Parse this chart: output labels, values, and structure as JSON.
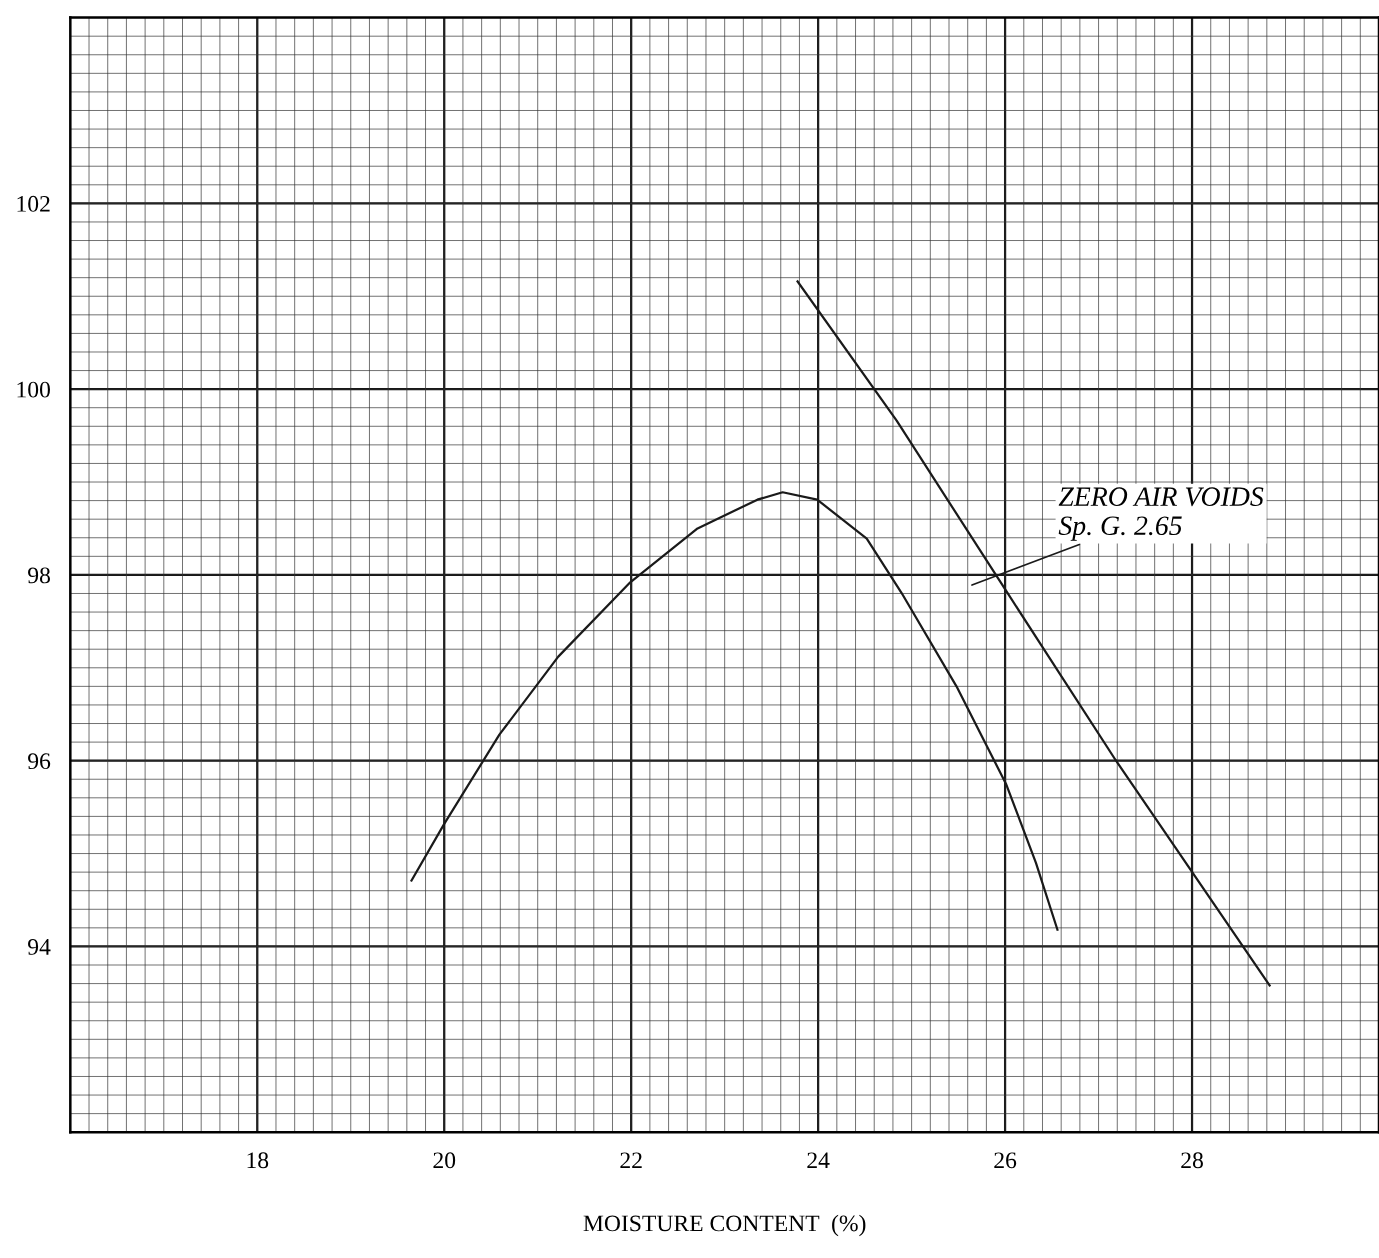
{
  "chart_data": {
    "type": "line",
    "xlabel": "MOISTURE CONTENT  (%)",
    "xlim": [
      16,
      30
    ],
    "ylim": [
      92,
      104
    ],
    "xticks": [
      18,
      20,
      22,
      24,
      26,
      28
    ],
    "yticks": [
      94,
      96,
      98,
      100,
      102
    ],
    "grid": true,
    "marker": "none",
    "line_style": "solid",
    "series": [
      {
        "color": "#1a1a1a",
        "x": [
          19.65,
          20.0,
          20.59,
          21.22,
          21.99,
          22.71,
          23.35,
          23.62,
          23.99,
          24.52,
          24.89,
          25.48,
          26.01,
          26.33,
          26.56
        ],
        "values": [
          94.71,
          95.32,
          96.28,
          97.12,
          97.92,
          98.5,
          98.81,
          98.89,
          98.81,
          98.39,
          97.81,
          96.8,
          95.75,
          94.9,
          94.18
        ]
      },
      {
        "color": "#1a1a1a",
        "x": [
          23.78,
          24.84,
          26.01,
          27.18,
          28.83
        ],
        "values": [
          101.16,
          99.66,
          97.83,
          96.01,
          93.58
        ]
      }
    ],
    "annotations": [
      "ZERO AIR VOIDS\nSp. G. 2.65"
    ]
  }
}
